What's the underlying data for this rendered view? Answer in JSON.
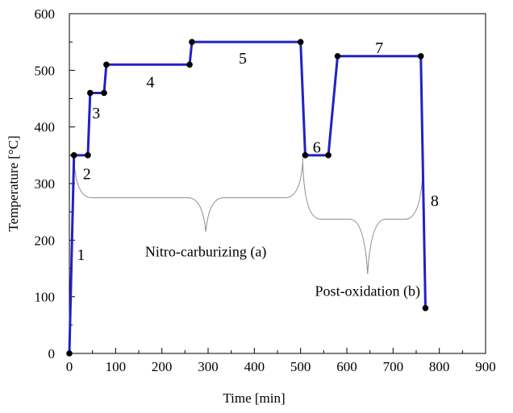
{
  "colors": {
    "line": "#1f22c4",
    "marker": "#000000",
    "brace": "#8c8c8c",
    "axis": "#000000"
  },
  "chart_data": {
    "type": "line",
    "title": "",
    "xlabel": "Time [min]",
    "ylabel": "Temperature [°C]",
    "xlim": [
      0,
      900
    ],
    "ylim": [
      0,
      600
    ],
    "x_ticks": [
      0,
      100,
      200,
      300,
      400,
      500,
      600,
      700,
      800,
      900
    ],
    "y_ticks": [
      0,
      100,
      200,
      300,
      400,
      500,
      600
    ],
    "x_tick_labels": [
      "0",
      "100",
      "200",
      "300",
      "400",
      "500",
      "600",
      "700",
      "800",
      "900"
    ],
    "y_tick_labels": [
      "0",
      "100",
      "200",
      "300",
      "400",
      "500",
      "600"
    ],
    "grid": false,
    "series": [
      {
        "x": [
          0,
          10,
          40,
          45,
          75,
          80,
          260,
          265,
          500,
          510,
          560,
          580,
          760,
          770
        ],
        "y": [
          0,
          350,
          350,
          460,
          460,
          510,
          510,
          550,
          550,
          350,
          350,
          525,
          525,
          80
        ]
      }
    ],
    "segment_labels": [
      {
        "text": "1",
        "x": 25,
        "y": 175
      },
      {
        "text": "2",
        "x": 38,
        "y": 318
      },
      {
        "text": "3",
        "x": 58,
        "y": 425
      },
      {
        "text": "4",
        "x": 175,
        "y": 480
      },
      {
        "text": "5",
        "x": 375,
        "y": 522
      },
      {
        "text": "6",
        "x": 535,
        "y": 365
      },
      {
        "text": "7",
        "x": 670,
        "y": 540
      },
      {
        "text": "8",
        "x": 790,
        "y": 270
      }
    ],
    "annotations": [
      {
        "text": "Nitro-carburizing (a)",
        "x": 295,
        "y": 180,
        "brace": {
          "x_start": 10,
          "x_end": 505,
          "y_top": 345,
          "y_flat": 275,
          "y_tip": 215
        }
      },
      {
        "text": "Post-oxidation (b)",
        "x": 645,
        "y": 110,
        "brace": {
          "x_start": 505,
          "x_end": 765,
          "y_top": 335,
          "y_flat": 237,
          "y_tip": 140
        }
      }
    ]
  }
}
